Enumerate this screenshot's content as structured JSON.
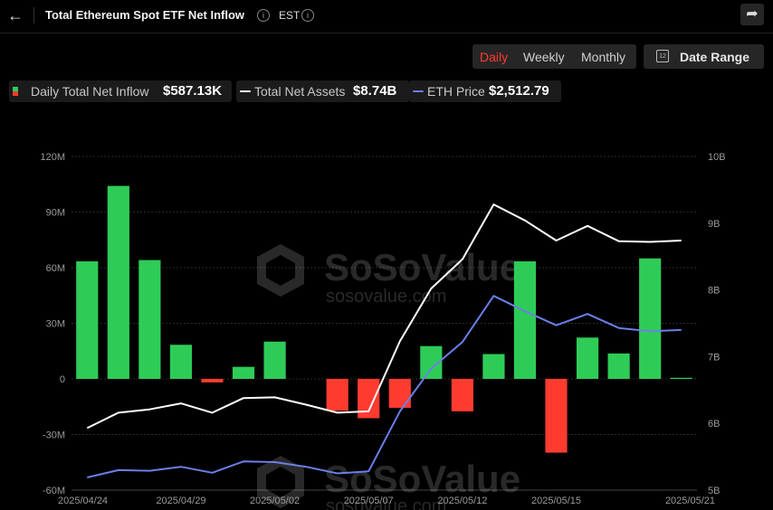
{
  "header": {
    "title": "Total Ethereum Spot ETF Net Inflow",
    "timezone": "EST",
    "back_icon": "arrow-left-icon",
    "share_icon": "share-icon"
  },
  "controls": {
    "periods": [
      "Daily",
      "Weekly",
      "Monthly"
    ],
    "active_period": "Daily",
    "date_range_label": "Date Range",
    "date_range_icon": "calendar-icon",
    "calendar_glyph": "12"
  },
  "legend": [
    {
      "label": "Daily Total Net Inflow",
      "value": "$587.13K"
    },
    {
      "label": "Total Net Assets",
      "value": "$8.74B"
    },
    {
      "label": "ETH Price",
      "value": "$2,512.79"
    }
  ],
  "watermark": {
    "brand": "SoSoValue",
    "url": "sosovalue.com"
  },
  "colors": {
    "positive": "#2ecc57",
    "negative": "#ff3b30",
    "assets_line": "#ffffff",
    "eth_line": "#6b7fe8",
    "accent": "#ff3b30"
  },
  "chart_data": {
    "type": "bar",
    "x_ticks": [
      "2025/04/24",
      "2025/04/29",
      "2025/05/02",
      "2025/05/07",
      "2025/05/12",
      "2025/05/15",
      "2025/05/21"
    ],
    "x": [
      "2025/04/24",
      "2025/04/25",
      "2025/04/28",
      "2025/04/29",
      "2025/04/30",
      "2025/05/01",
      "2025/05/02",
      "2025/05/05",
      "2025/05/06",
      "2025/05/07",
      "2025/05/08",
      "2025/05/09",
      "2025/05/12",
      "2025/05/13",
      "2025/05/14",
      "2025/05/15",
      "2025/05/16",
      "2025/05/19",
      "2025/05/20",
      "2025/05/21"
    ],
    "y_left_ticks": [
      "-60M",
      "-30M",
      "0",
      "30M",
      "60M",
      "90M",
      "120M"
    ],
    "y_left_range": [
      -60,
      120
    ],
    "y_right_ticks": [
      "5B",
      "6B",
      "7B",
      "8B",
      "9B",
      "10B"
    ],
    "y_right_range": [
      5,
      10
    ],
    "grid": true,
    "series": [
      {
        "name": "Daily Total Net Inflow",
        "type": "bar",
        "unit": "M",
        "values": [
          63.4,
          104.1,
          64.1,
          18.4,
          -1.9,
          6.5,
          20.1,
          null,
          -17.2,
          -21.2,
          -15.6,
          17.7,
          -17.5,
          13.4,
          63.4,
          -39.8,
          22.3,
          13.7,
          65.0,
          0.59
        ]
      },
      {
        "name": "Total Net Assets",
        "type": "line",
        "unit": "B",
        "values": [
          5.93,
          6.16,
          6.21,
          6.3,
          6.16,
          6.38,
          6.39,
          6.28,
          6.16,
          6.18,
          7.23,
          8.02,
          8.46,
          9.28,
          9.04,
          8.74,
          8.96,
          8.73,
          8.72,
          8.74
        ]
      },
      {
        "name": "ETH Price",
        "type": "line",
        "unit": "B-scale",
        "values": [
          5.19,
          5.3,
          5.29,
          5.35,
          5.26,
          5.43,
          5.42,
          5.35,
          5.25,
          5.28,
          6.18,
          6.82,
          7.22,
          7.91,
          7.68,
          7.47,
          7.64,
          7.43,
          7.38,
          7.4
        ]
      }
    ]
  }
}
